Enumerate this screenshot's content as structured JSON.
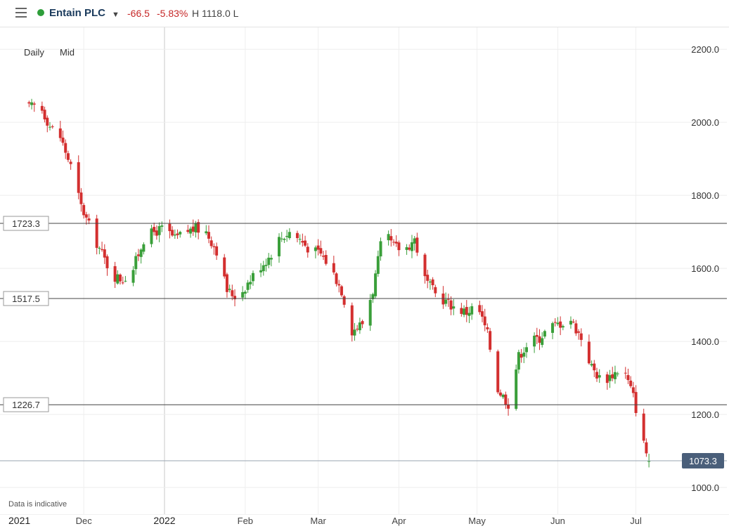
{
  "header": {
    "title": "Entain PLC",
    "change": "-66.5",
    "change_pct": "-5.83%",
    "high_low": "H 1118.0 L",
    "status_color": "#2e9e3a"
  },
  "controls": {
    "interval": "Daily",
    "price_type": "Mid"
  },
  "footer_note": "Data is indicative",
  "chart_data": {
    "type": "candlestick",
    "y_ticks": [
      "2200.0",
      "2000.0",
      "1800.0",
      "1600.0",
      "1400.0",
      "1200.0",
      "1000.0"
    ],
    "y_tick_values": [
      2200,
      2000,
      1800,
      1600,
      1400,
      1200,
      1000
    ],
    "ylim": [
      927,
      2260
    ],
    "x_labels": [
      "2021",
      "Dec",
      "2022",
      "Feb",
      "Mar",
      "Apr",
      "May",
      "Jun",
      "Jul"
    ],
    "x_label_positions": [
      "2021-11-01",
      "2021-12-01",
      "2022-01-01",
      "2022-02-01",
      "2022-03-01",
      "2022-04-01",
      "2022-05-01",
      "2022-06-01",
      "2022-07-01"
    ],
    "horizontal_lines": [
      {
        "label": "1723.3",
        "value": 1723.3
      },
      {
        "label": "1517.5",
        "value": 1517.5
      },
      {
        "label": "1226.7",
        "value": 1226.7
      }
    ],
    "last_price": {
      "label": "1073.3",
      "value": 1073.3
    },
    "up_color": "#3a9f3a",
    "down_color": "#d32f2f",
    "path_dates": [
      "2021-11-10",
      "2021-11-14",
      "2021-11-18",
      "2021-11-22",
      "2021-11-26",
      "2021-11-30",
      "2021-12-04",
      "2021-12-08",
      "2021-12-12",
      "2021-12-16",
      "2021-12-20",
      "2021-12-24",
      "2021-12-28",
      "2022-01-01",
      "2022-01-05",
      "2022-01-09",
      "2022-01-13",
      "2022-01-17",
      "2022-01-21",
      "2022-01-25",
      "2022-01-29",
      "2022-02-02",
      "2022-02-06",
      "2022-02-10",
      "2022-02-14",
      "2022-02-18",
      "2022-02-22",
      "2022-02-26",
      "2022-03-02",
      "2022-03-06",
      "2022-03-10",
      "2022-03-14",
      "2022-03-18",
      "2022-03-22",
      "2022-03-26",
      "2022-03-30",
      "2022-04-03",
      "2022-04-07",
      "2022-04-11",
      "2022-04-15",
      "2022-04-19",
      "2022-04-23",
      "2022-04-27",
      "2022-05-01",
      "2022-05-05",
      "2022-05-09",
      "2022-05-13",
      "2022-05-17",
      "2022-05-21",
      "2022-05-25",
      "2022-05-29",
      "2022-06-02",
      "2022-06-06",
      "2022-06-10",
      "2022-06-14",
      "2022-06-18",
      "2022-06-22",
      "2022-06-26",
      "2022-06-30",
      "2022-07-04",
      "2022-07-06"
    ],
    "path_values": [
      2040,
      2050,
      1990,
      1960,
      1880,
      1770,
      1700,
      1640,
      1580,
      1570,
      1600,
      1680,
      1700,
      1710,
      1680,
      1700,
      1710,
      1700,
      1650,
      1540,
      1520,
      1560,
      1600,
      1630,
      1680,
      1700,
      1680,
      1650,
      1640,
      1600,
      1540,
      1430,
      1450,
      1540,
      1700,
      1660,
      1650,
      1680,
      1570,
      1530,
      1510,
      1490,
      1480,
      1500,
      1420,
      1270,
      1230,
      1360,
      1400,
      1410,
      1440,
      1450,
      1460,
      1410,
      1330,
      1290,
      1310,
      1330,
      1250,
      1120,
      1073.3
    ]
  }
}
